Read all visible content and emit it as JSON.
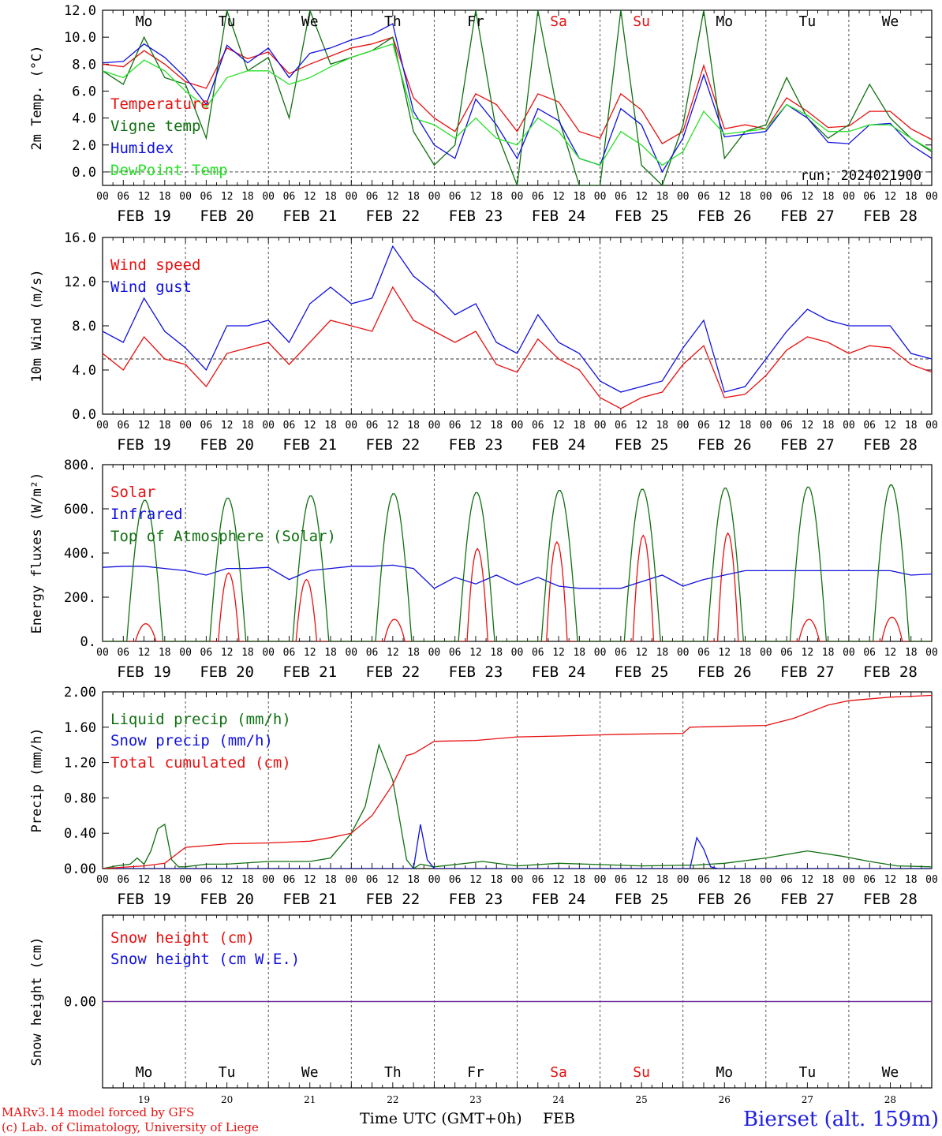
{
  "run_label": "run: 2024021900",
  "station": "Bierset (alt. 159m)",
  "credit": [
    "MARv3.14 model forced by GFS",
    "(c) Lab. of Climatology, University of Liege"
  ],
  "xaxis_title": "Time UTC (GMT+0h)",
  "month_label": "FEB",
  "colors": {
    "red": "#e81010",
    "green": "#107010",
    "blue": "#1010e0",
    "lightgreen": "#28e028",
    "purple": "#7030a0",
    "station": "#2020e0"
  },
  "days": [
    {
      "dow": "Mo",
      "date": "FEB 19",
      "num": "19",
      "weekend": false
    },
    {
      "dow": "Tu",
      "date": "FEB 20",
      "num": "20",
      "weekend": false
    },
    {
      "dow": "We",
      "date": "FEB 21",
      "num": "21",
      "weekend": false
    },
    {
      "dow": "Th",
      "date": "FEB 22",
      "num": "22",
      "weekend": false
    },
    {
      "dow": "Fr",
      "date": "FEB 23",
      "num": "23",
      "weekend": false
    },
    {
      "dow": "Sa",
      "date": "FEB 24",
      "num": "24",
      "weekend": true
    },
    {
      "dow": "Su",
      "date": "FEB 25",
      "num": "25",
      "weekend": true
    },
    {
      "dow": "Mo",
      "date": "FEB 26",
      "num": "26",
      "weekend": false
    },
    {
      "dow": "Tu",
      "date": "FEB 27",
      "num": "27",
      "weekend": false
    },
    {
      "dow": "We",
      "date": "FEB 28",
      "num": "28",
      "weekend": false
    }
  ],
  "hour_ticks": [
    "00",
    "06",
    "12",
    "18"
  ],
  "last_hour_tick": "00",
  "chart_data": [
    {
      "type": "line",
      "ylabel": "2m Temp. (°C)",
      "ylim": [
        -1,
        12
      ],
      "yticks": [
        "0.0",
        "2.0",
        "4.0",
        "6.0",
        "8.0",
        "10.0",
        "12.0"
      ],
      "yticks_values": [
        0,
        2,
        4,
        6,
        8,
        10,
        12
      ],
      "ref_line": 0,
      "x_unit": "hours since Feb 19 00 UTC",
      "series": [
        {
          "name": "Temperature",
          "color": "red",
          "x": [
            0,
            6,
            12,
            18,
            24,
            30,
            36,
            42,
            48,
            54,
            60,
            66,
            72,
            78,
            84,
            90,
            96,
            102,
            108,
            114,
            120,
            126,
            132,
            138,
            144,
            150,
            156,
            162,
            168,
            174,
            180,
            186,
            192,
            198,
            204,
            210,
            216,
            222,
            228,
            234,
            240
          ],
          "values": [
            8.0,
            7.8,
            9.0,
            8.0,
            6.7,
            6.2,
            9.2,
            8.4,
            8.9,
            7.3,
            8.0,
            8.6,
            9.2,
            9.5,
            10.0,
            5.5,
            4.0,
            3.0,
            5.8,
            5.0,
            3.0,
            5.8,
            5.2,
            3.0,
            2.5,
            5.8,
            4.6,
            2.1,
            3.0,
            7.9,
            3.2,
            3.5,
            3.2,
            5.5,
            4.5,
            3.3,
            3.4,
            4.5,
            4.5,
            3.2,
            2.4
          ]
        },
        {
          "name": "Vigne temp",
          "color": "green",
          "x": [
            0,
            6,
            12,
            18,
            24,
            30,
            36,
            42,
            48,
            54,
            60,
            66,
            72,
            78,
            84,
            90,
            96,
            102,
            108,
            114,
            120,
            126,
            132,
            138,
            144,
            150,
            156,
            162,
            168,
            174,
            180,
            186,
            192,
            198,
            204,
            210,
            216,
            222,
            228,
            234,
            240
          ],
          "values": [
            7.5,
            6.5,
            10.0,
            7.0,
            6.5,
            2.5,
            12.0,
            7.5,
            8.5,
            4.0,
            12.0,
            8.0,
            8.5,
            9.0,
            10.0,
            3.0,
            0.5,
            2.0,
            12.0,
            3.0,
            -1.0,
            12.0,
            4.0,
            -1.0,
            -1.0,
            12.0,
            0.5,
            -1.0,
            3.5,
            12.0,
            1.0,
            3.0,
            3.5,
            7.0,
            4.0,
            2.5,
            3.5,
            6.5,
            4.0,
            2.5,
            1.5
          ]
        },
        {
          "name": "Humidex",
          "color": "blue",
          "x": [
            0,
            6,
            12,
            18,
            24,
            30,
            36,
            42,
            48,
            54,
            60,
            66,
            72,
            78,
            84,
            90,
            96,
            102,
            108,
            114,
            120,
            126,
            132,
            138,
            144,
            150,
            156,
            162,
            168,
            174,
            180,
            186,
            192,
            198,
            204,
            210,
            216,
            222,
            228,
            234,
            240
          ],
          "values": [
            8.1,
            8.2,
            9.5,
            8.5,
            7.0,
            5.0,
            9.4,
            8.1,
            9.2,
            7.0,
            8.8,
            9.2,
            9.8,
            10.2,
            11.0,
            4.5,
            2.0,
            1.0,
            5.4,
            3.5,
            1.0,
            4.7,
            3.8,
            1.0,
            0.5,
            4.7,
            3.5,
            0.0,
            2.5,
            7.2,
            2.6,
            2.8,
            3.0,
            5.0,
            4.0,
            2.2,
            2.1,
            3.5,
            3.6,
            2.0,
            1.0
          ]
        },
        {
          "name": "DewPoint Temp",
          "color": "lightgreen",
          "x": [
            0,
            6,
            12,
            18,
            24,
            30,
            36,
            42,
            48,
            54,
            60,
            66,
            72,
            78,
            84,
            90,
            96,
            102,
            108,
            114,
            120,
            126,
            132,
            138,
            144,
            150,
            156,
            162,
            168,
            174,
            180,
            186,
            192,
            198,
            204,
            210,
            216,
            222,
            228,
            234,
            240
          ],
          "values": [
            7.5,
            7.0,
            8.3,
            7.5,
            6.0,
            4.8,
            7.0,
            7.5,
            7.5,
            6.5,
            7.0,
            7.8,
            8.5,
            9.0,
            9.5,
            4.0,
            3.5,
            2.5,
            4.0,
            2.5,
            2.0,
            4.0,
            3.0,
            1.0,
            0.5,
            3.0,
            2.0,
            0.5,
            1.5,
            4.5,
            2.8,
            3.0,
            3.2,
            5.0,
            4.2,
            3.0,
            3.0,
            3.5,
            3.5,
            2.5,
            1.6
          ]
        }
      ]
    },
    {
      "type": "line",
      "ylabel": "10m Wind (m/s)",
      "ylim": [
        0,
        16
      ],
      "yticks": [
        "0.0",
        "4.0",
        "8.0",
        "12.0",
        "16.0"
      ],
      "yticks_values": [
        0,
        4,
        8,
        12,
        16
      ],
      "ref_line": 5,
      "x_unit": "hours since Feb 19 00 UTC",
      "series": [
        {
          "name": "Wind speed",
          "color": "red",
          "x": [
            0,
            6,
            12,
            18,
            24,
            30,
            36,
            42,
            48,
            54,
            60,
            66,
            72,
            78,
            84,
            90,
            96,
            102,
            108,
            114,
            120,
            126,
            132,
            138,
            144,
            150,
            156,
            162,
            168,
            174,
            180,
            186,
            192,
            198,
            204,
            210,
            216,
            222,
            228,
            234,
            240
          ],
          "values": [
            5.5,
            4.0,
            7.0,
            5.0,
            4.5,
            2.5,
            5.5,
            6.0,
            6.5,
            4.5,
            6.5,
            8.5,
            8.0,
            7.5,
            11.5,
            8.5,
            7.5,
            6.5,
            7.5,
            4.5,
            3.8,
            6.8,
            5.0,
            4.0,
            1.5,
            0.5,
            1.5,
            2.0,
            4.5,
            6.2,
            1.5,
            1.8,
            3.5,
            5.8,
            7.0,
            6.5,
            5.5,
            6.2,
            6.0,
            4.5,
            3.8
          ]
        },
        {
          "name": "Wind gust",
          "color": "blue",
          "x": [
            0,
            6,
            12,
            18,
            24,
            30,
            36,
            42,
            48,
            54,
            60,
            66,
            72,
            78,
            84,
            90,
            96,
            102,
            108,
            114,
            120,
            126,
            132,
            138,
            144,
            150,
            156,
            162,
            168,
            174,
            180,
            186,
            192,
            198,
            204,
            210,
            216,
            222,
            228,
            234,
            240
          ],
          "values": [
            7.5,
            6.5,
            10.5,
            7.5,
            6.0,
            4.0,
            8.0,
            8.0,
            8.5,
            6.5,
            10.0,
            11.5,
            10.0,
            10.5,
            15.2,
            12.5,
            11.0,
            9.0,
            10.0,
            6.5,
            5.5,
            9.0,
            6.5,
            5.5,
            3.0,
            2.0,
            2.5,
            3.0,
            6.0,
            8.5,
            2.0,
            2.5,
            5.0,
            7.5,
            9.5,
            8.5,
            8.0,
            8.0,
            8.0,
            5.5,
            5.0
          ]
        }
      ]
    },
    {
      "type": "line",
      "ylabel": "Energy fluxes (W/m²)",
      "ylim": [
        0,
        800
      ],
      "yticks": [
        "0.",
        "200.",
        "400.",
        "600.",
        "800."
      ],
      "yticks_values": [
        0,
        200,
        400,
        600,
        800
      ],
      "x_unit": "hours since Feb 19 00 UTC",
      "series": [
        {
          "name": "Solar",
          "color": "red",
          "peaks": [
            80,
            310,
            280,
            100,
            420,
            450,
            480,
            490,
            100,
            110
          ],
          "peak_hours": [
            12.5,
            12.5,
            11,
            12.5,
            12.5,
            11.5,
            12.5,
            13,
            12.5,
            12.5
          ]
        },
        {
          "name": "Infrared",
          "color": "blue",
          "x": [
            0,
            6,
            12,
            18,
            24,
            30,
            36,
            42,
            48,
            54,
            60,
            66,
            72,
            78,
            84,
            90,
            96,
            102,
            108,
            114,
            120,
            126,
            132,
            138,
            144,
            150,
            156,
            162,
            168,
            174,
            180,
            186,
            192,
            198,
            204,
            210,
            216,
            222,
            228,
            234,
            240
          ],
          "values": [
            335,
            340,
            340,
            330,
            320,
            300,
            330,
            330,
            335,
            280,
            320,
            330,
            340,
            340,
            345,
            330,
            240,
            290,
            260,
            300,
            255,
            290,
            250,
            240,
            240,
            240,
            270,
            300,
            250,
            280,
            300,
            320,
            320,
            320,
            320,
            320,
            320,
            320,
            320,
            300,
            305
          ]
        },
        {
          "name": "Top of Atmosphere (Solar)",
          "color": "green",
          "peaks": [
            640,
            650,
            660,
            670,
            675,
            685,
            690,
            695,
            700,
            710
          ]
        }
      ]
    },
    {
      "type": "line",
      "ylabel": "Precip (mm/h)",
      "ylim": [
        0,
        2
      ],
      "yticks": [
        "0.00",
        "0.40",
        "0.80",
        "1.20",
        "1.60",
        "2.00"
      ],
      "yticks_values": [
        0,
        0.4,
        0.8,
        1.2,
        1.6,
        2.0
      ],
      "x_unit": "hours since Feb 19 00 UTC",
      "series": [
        {
          "name": "Liquid precip (mm/h)",
          "color": "green",
          "x": [
            0,
            4,
            8,
            10,
            12,
            14,
            16,
            18,
            20,
            22,
            24,
            30,
            36,
            48,
            60,
            66,
            72,
            76,
            80,
            84,
            88,
            90,
            92,
            96,
            110,
            120,
            132,
            156,
            172,
            180,
            192,
            204,
            214,
            222,
            230,
            240
          ],
          "values": [
            0,
            0.03,
            0.05,
            0.12,
            0.05,
            0.2,
            0.45,
            0.5,
            0.1,
            0.02,
            0.02,
            0.05,
            0.05,
            0.08,
            0.08,
            0.12,
            0.4,
            0.7,
            1.4,
            1.0,
            0.1,
            0.0,
            0.05,
            0.02,
            0.08,
            0.03,
            0.06,
            0.03,
            0.04,
            0.06,
            0.12,
            0.2,
            0.14,
            0.08,
            0.03,
            0.02
          ]
        },
        {
          "name": "Snow precip (mm/h)",
          "color": "blue",
          "x": [
            0,
            90,
            92,
            94,
            96,
            100,
            170,
            172,
            174,
            176,
            178,
            240
          ],
          "values": [
            0,
            0,
            0.5,
            0.1,
            0,
            0,
            0,
            0.35,
            0.22,
            0.02,
            0,
            0
          ]
        },
        {
          "name": "Total cumulated (cm)",
          "color": "red",
          "x": [
            0,
            12,
            18,
            24,
            30,
            36,
            48,
            60,
            66,
            72,
            78,
            84,
            88,
            90,
            96,
            108,
            120,
            132,
            150,
            168,
            170,
            180,
            192,
            200,
            210,
            216,
            228,
            240
          ],
          "values": [
            0,
            0.03,
            0.06,
            0.24,
            0.26,
            0.28,
            0.29,
            0.31,
            0.35,
            0.4,
            0.6,
            0.95,
            1.28,
            1.3,
            1.44,
            1.45,
            1.49,
            1.5,
            1.52,
            1.53,
            1.6,
            1.61,
            1.62,
            1.7,
            1.85,
            1.9,
            1.94,
            1.96
          ]
        }
      ]
    },
    {
      "type": "line",
      "ylabel": "Snow height (cm)",
      "yticks": [
        "0.00"
      ],
      "yticks_values": [
        0
      ],
      "series": [
        {
          "name": "Snow height (cm)",
          "color": "red",
          "x": [
            0,
            240
          ],
          "values": [
            0,
            0
          ]
        },
        {
          "name": "Snow height (cm W.E.)",
          "color": "blue",
          "x": [
            0,
            240
          ],
          "values": [
            0,
            0
          ]
        }
      ]
    }
  ]
}
